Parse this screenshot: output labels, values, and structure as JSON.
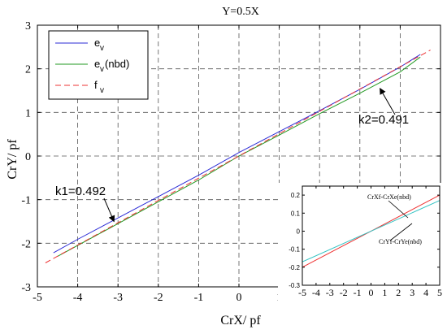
{
  "chart_data": [
    {
      "type": "line",
      "title": "Y=0.5X",
      "xlabel": "CrX/ pf",
      "ylabel": "CrY/ pf",
      "xlim": [
        -5,
        5
      ],
      "ylim": [
        -3,
        3
      ],
      "xticks": [
        -5,
        -4,
        -3,
        -2,
        -1,
        0,
        1,
        2,
        3,
        4,
        5
      ],
      "yticks": [
        -3,
        -2,
        -1,
        0,
        1,
        2,
        3
      ],
      "grid": true,
      "legend": {
        "placement": "top-left",
        "entries": [
          {
            "base": "e",
            "sub": "v",
            "suffix": ""
          },
          {
            "base": "e",
            "sub": "v",
            "suffix": "(nbd)"
          },
          {
            "base": "f",
            "sub": "v",
            "suffix": ""
          }
        ]
      },
      "series": [
        {
          "name": "e_v",
          "color": "#2b2bd6",
          "style": "solid",
          "x": [
            -4.6,
            -4,
            -3,
            -2,
            -1,
            0,
            1,
            2,
            3,
            4,
            4.5
          ],
          "y": [
            -2.22,
            -1.91,
            -1.42,
            -0.93,
            -0.44,
            0.08,
            0.56,
            1.04,
            1.53,
            2.04,
            2.33
          ]
        },
        {
          "name": "e_v(nbd)",
          "color": "#229922",
          "style": "solid",
          "x": [
            -4.5,
            -4,
            -3,
            -2,
            -1,
            0,
            1,
            2,
            3,
            4,
            4.5
          ],
          "y": [
            -2.3,
            -2.05,
            -1.55,
            -1.05,
            -0.55,
            0.0,
            0.48,
            0.97,
            1.44,
            1.93,
            2.27
          ]
        },
        {
          "name": "f_v",
          "color": "#ee3333",
          "style": "dashed",
          "x": [
            -4.8,
            4.75
          ],
          "y": [
            -2.45,
            2.43
          ]
        }
      ],
      "annotations": [
        {
          "text": "k1=0.492",
          "target": [
            -3.1,
            -1.5
          ]
        },
        {
          "text": "k2=0.491",
          "target": [
            3.5,
            1.55
          ]
        }
      ]
    },
    {
      "type": "line",
      "xlim": [
        -5,
        5
      ],
      "ylim": [
        -0.3,
        0.25
      ],
      "xticks": [
        -5,
        -4,
        -3,
        -2,
        -1,
        0,
        1,
        2,
        3,
        4,
        5
      ],
      "yticks": [
        -0.3,
        -0.2,
        -0.1,
        0,
        0.1,
        0.2
      ],
      "series": [
        {
          "color": "#ee3333",
          "x": [
            -5,
            5
          ],
          "y": [
            -0.2,
            0.2
          ]
        },
        {
          "color": "#33c3c3",
          "x": [
            -5,
            5
          ],
          "y": [
            -0.17,
            0.17
          ]
        }
      ],
      "annotations": [
        {
          "text": "CrXf-CrXe(nbd)"
        },
        {
          "text": "CrYf-CrYe(nbd)"
        }
      ]
    }
  ]
}
